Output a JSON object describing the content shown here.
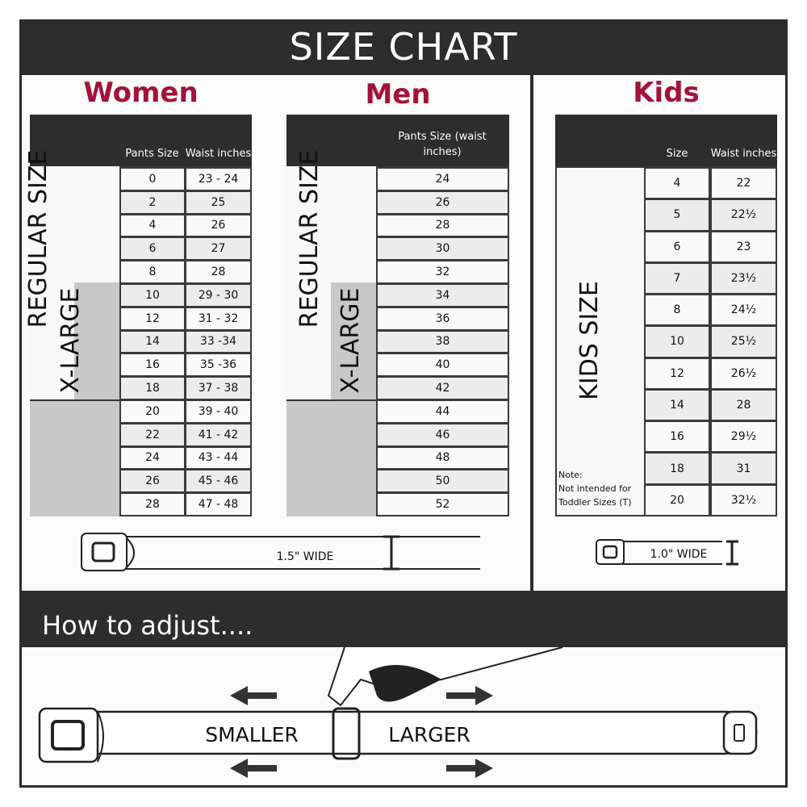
{
  "title": "SIZE CHART",
  "women": {
    "title": "Women",
    "col_size": "Pants Size",
    "col_waist": "Waist inches",
    "regular_label": "REGULAR SIZE",
    "xlarge_label": "X-LARGE",
    "rows": [
      [
        "0",
        "23 - 24"
      ],
      [
        "2",
        "25"
      ],
      [
        "4",
        "26"
      ],
      [
        "6",
        "27"
      ],
      [
        "8",
        "28"
      ],
      [
        "10",
        "29 - 30"
      ],
      [
        "12",
        "31 - 32"
      ],
      [
        "14",
        "33 -34"
      ],
      [
        "16",
        "35 -36"
      ],
      [
        "18",
        "37 - 38"
      ],
      [
        "20",
        "39 - 40"
      ],
      [
        "22",
        "41 - 42"
      ],
      [
        "24",
        "43 - 44"
      ],
      [
        "26",
        "45 - 46"
      ],
      [
        "28",
        "47 - 48"
      ]
    ],
    "belt_width": "1.5\" WIDE"
  },
  "men": {
    "title": "Men",
    "col_size": "Pants Size (waist inches)",
    "regular_label": "REGULAR SIZE",
    "xlarge_label": "X-LARGE",
    "rows": [
      "24",
      "26",
      "28",
      "30",
      "32",
      "34",
      "36",
      "38",
      "40",
      "42",
      "44",
      "46",
      "48",
      "50",
      "52"
    ]
  },
  "kids": {
    "title": "Kids",
    "col_size": "Size",
    "col_waist": "Waist inches",
    "label": "KIDS SIZE",
    "note_title": "Note:",
    "note_line1": "Not intended for",
    "note_line2": "Toddler Sizes (T)",
    "rows": [
      [
        "4",
        "22"
      ],
      [
        "5",
        "22½"
      ],
      [
        "6",
        "23"
      ],
      [
        "7",
        "23½"
      ],
      [
        "8",
        "24½"
      ],
      [
        "10",
        "25½"
      ],
      [
        "12",
        "26½"
      ],
      [
        "14",
        "28"
      ],
      [
        "16",
        "29½"
      ],
      [
        "18",
        "31"
      ],
      [
        "20",
        "32½"
      ]
    ],
    "belt_width": "1.0\" WIDE"
  },
  "adjust": {
    "title": "How to adjust....",
    "smaller": "SMALLER",
    "larger": "LARGER"
  },
  "colors": {
    "title_red": "#a3123a",
    "dark": "#2d2d2d",
    "xlarge_gray": "#c8c8c8"
  }
}
